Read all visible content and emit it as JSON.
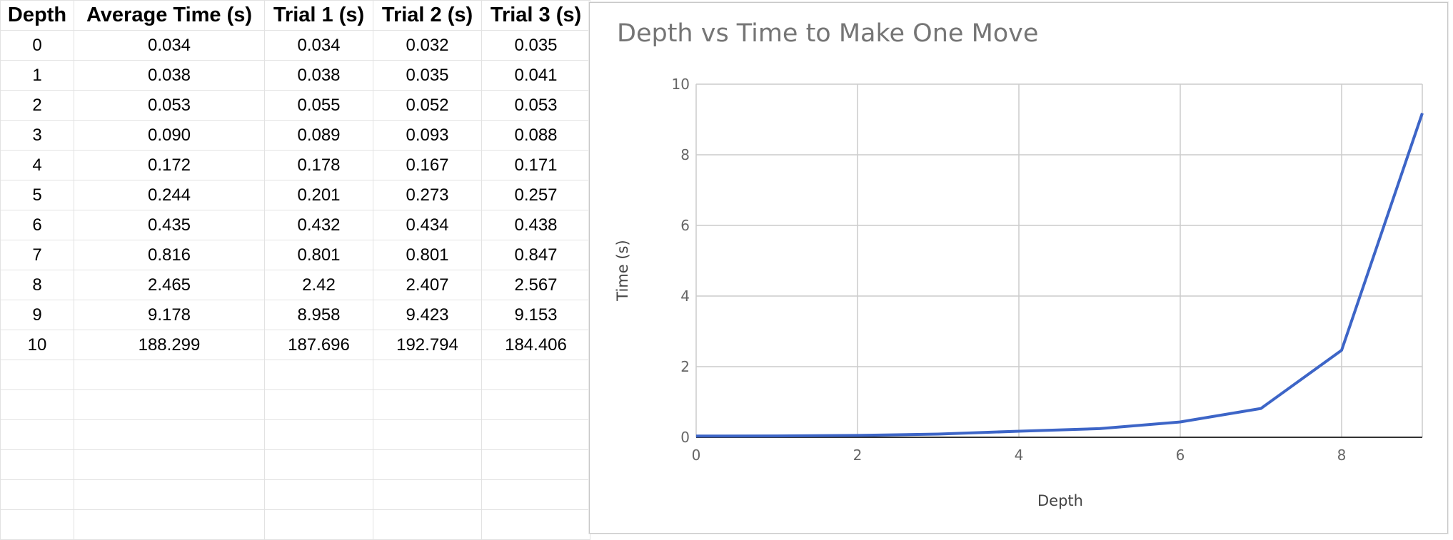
{
  "table": {
    "headers": [
      "Depth",
      "Average Time (s)",
      "Trial 1 (s)",
      "Trial 2 (s)",
      "Trial 3 (s)"
    ],
    "rows": [
      [
        "0",
        "0.034",
        "0.034",
        "0.032",
        "0.035"
      ],
      [
        "1",
        "0.038",
        "0.038",
        "0.035",
        "0.041"
      ],
      [
        "2",
        "0.053",
        "0.055",
        "0.052",
        "0.053"
      ],
      [
        "3",
        "0.090",
        "0.089",
        "0.093",
        "0.088"
      ],
      [
        "4",
        "0.172",
        "0.178",
        "0.167",
        "0.171"
      ],
      [
        "5",
        "0.244",
        "0.201",
        "0.273",
        "0.257"
      ],
      [
        "6",
        "0.435",
        "0.432",
        "0.434",
        "0.438"
      ],
      [
        "7",
        "0.816",
        "0.801",
        "0.801",
        "0.847"
      ],
      [
        "8",
        "2.465",
        "2.42",
        "2.407",
        "2.567"
      ],
      [
        "9",
        "9.178",
        "8.958",
        "9.423",
        "9.153"
      ],
      [
        "10",
        "188.299",
        "187.696",
        "192.794",
        "184.406"
      ]
    ]
  },
  "chart_data": {
    "type": "line",
    "title": "Depth vs Time to Make One Move",
    "xlabel": "Depth",
    "ylabel": "Time (s)",
    "x": [
      0,
      1,
      2,
      3,
      4,
      5,
      6,
      7,
      8,
      9
    ],
    "series": [
      {
        "values": [
          0.034,
          0.038,
          0.053,
          0.09,
          0.172,
          0.244,
          0.435,
          0.816,
          2.465,
          9.178
        ]
      }
    ],
    "xlim": [
      0,
      9
    ],
    "ylim": [
      0,
      10
    ],
    "xticks": [
      "0",
      "2",
      "4",
      "6",
      "8"
    ],
    "yticks": [
      "0",
      "2",
      "4",
      "6",
      "8",
      "10"
    ],
    "grid": true,
    "legend": "none",
    "color": "#3d65c7"
  }
}
